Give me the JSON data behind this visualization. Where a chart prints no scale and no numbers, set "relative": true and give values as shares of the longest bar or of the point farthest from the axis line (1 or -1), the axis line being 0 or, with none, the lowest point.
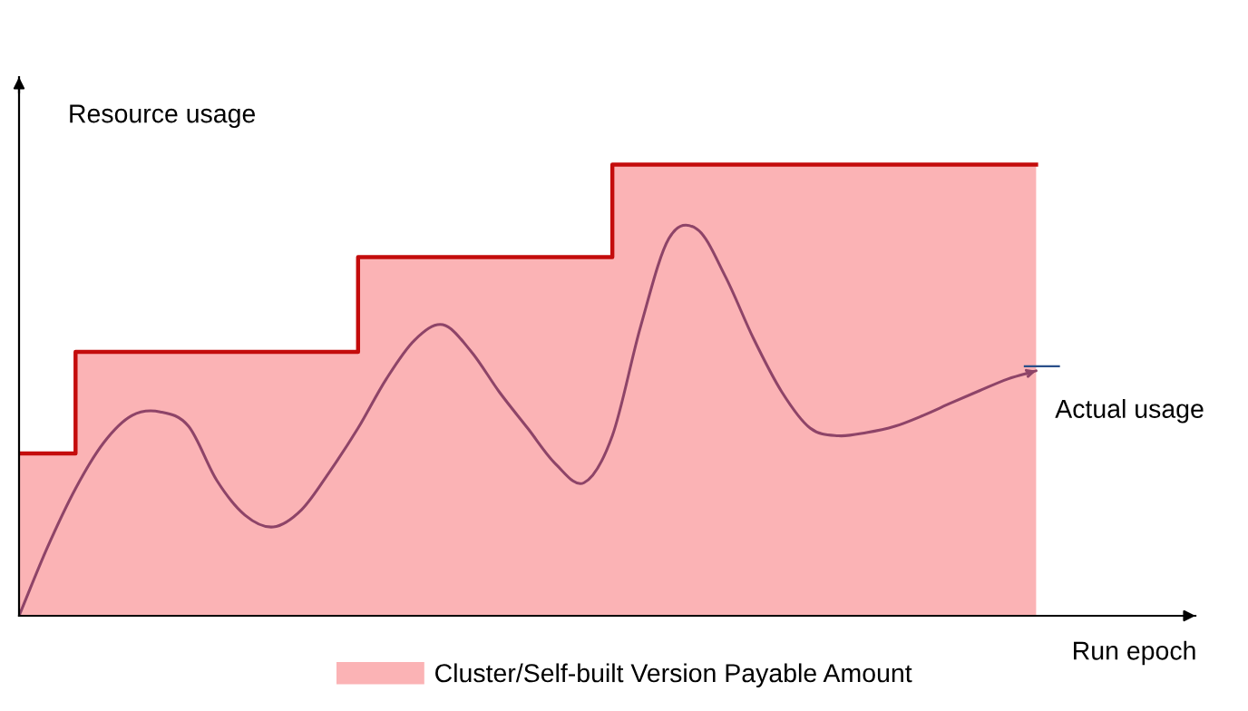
{
  "chart_data": {
    "type": "step",
    "xlabel": "Run epoch",
    "ylabel": "Resource usage",
    "relative": true,
    "legend": "bottom",
    "categories": [
      null,
      null,
      null,
      null,
      null,
      null,
      null,
      null,
      null,
      null,
      null,
      null,
      null,
      null,
      null,
      null,
      null,
      null,
      null,
      null,
      null,
      null,
      null,
      null,
      null,
      null,
      null,
      null,
      null,
      null,
      null,
      null,
      null,
      null,
      null,
      null,
      null
    ],
    "series": [
      {
        "type": "area",
        "name": "Cluster/Self-built Version Payable Amount",
        "color": "#fbb3b5",
        "values": [
          0.36,
          0.36,
          0.585,
          0.585,
          0.585,
          0.585,
          0.585,
          0.585,
          0.585,
          0.585,
          0.585,
          0.585,
          0.795,
          0.795,
          0.795,
          0.795,
          0.795,
          0.795,
          0.795,
          0.795,
          0.795,
          1,
          1,
          1,
          1,
          1,
          1,
          1,
          1,
          1,
          1,
          1,
          1,
          1,
          1,
          1,
          1
        ]
      },
      {
        "type": "step",
        "color": "#c40c0c",
        "values": [
          0.36,
          0.36,
          0.585,
          0.585,
          0.585,
          0.585,
          0.585,
          0.585,
          0.585,
          0.585,
          0.585,
          0.585,
          0.795,
          0.795,
          0.795,
          0.795,
          0.795,
          0.795,
          0.795,
          0.795,
          0.795,
          1,
          1,
          1,
          1,
          1,
          1,
          1,
          1,
          1,
          1,
          1,
          1,
          1,
          1,
          1,
          1
        ]
      },
      {
        "type": "line",
        "name": "Actual usage",
        "color": "#8e4468",
        "values": [
          0,
          0.151,
          0.282,
          0.384,
          0.444,
          0.452,
          0.42,
          0.3,
          0.223,
          0.197,
          0.235,
          0.32,
          0.416,
          0.525,
          0.611,
          0.645,
          0.586,
          0.496,
          0.416,
          0.336,
          0.295,
          0.399,
          0.641,
          0.836,
          0.857,
          0.752,
          0.614,
          0.496,
          0.416,
          0.399,
          0.406,
          0.42,
          0.444,
          0.472,
          0.499,
          0.525,
          0.543
        ]
      }
    ]
  }
}
